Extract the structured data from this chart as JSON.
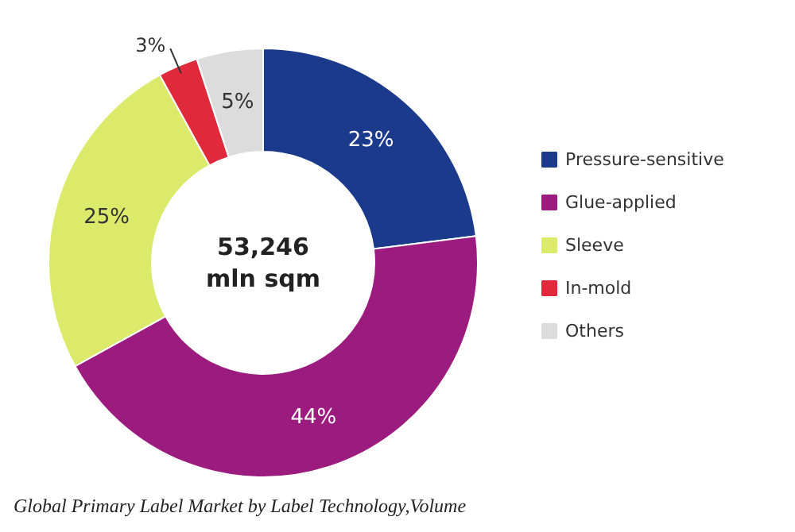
{
  "chart_data": {
    "type": "donut",
    "categories": [
      "Pressure-sensitive",
      "Glue-applied",
      "Sleeve",
      "In-mold",
      "Others"
    ],
    "values": [
      23,
      44,
      25,
      3,
      5
    ],
    "colors": [
      "#1b3a8c",
      "#9b1b7e",
      "#dcea6c",
      "#e02a3c",
      "#dcdcdc"
    ],
    "value_labels": [
      "23%",
      "44%",
      "25%",
      "3%",
      "5%"
    ],
    "legend": "right",
    "annotations": [
      "53,246\nmln sqm",
      "Global Primary Label Market by Label Technology,Volume"
    ]
  }
}
